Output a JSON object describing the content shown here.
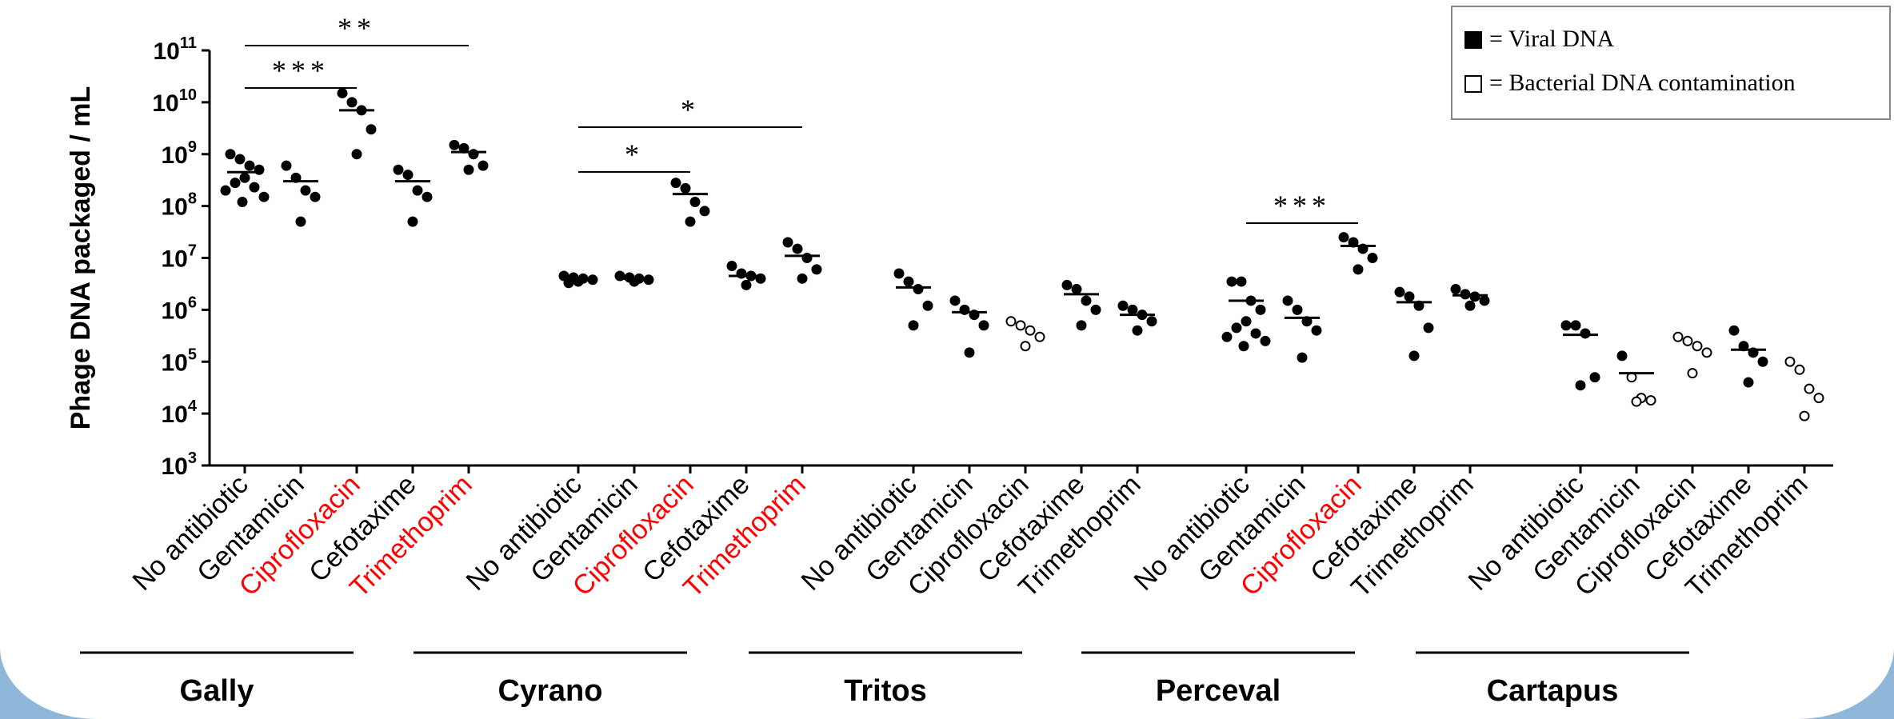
{
  "chart_data": {
    "type": "scatter",
    "y_axis": {
      "label": "Phage DNA packaged / mL",
      "scale": "log10",
      "min_exp": 3,
      "max_exp": 11,
      "ticks": [
        {
          "base": "10",
          "exp": "11"
        },
        {
          "base": "10",
          "exp": "10"
        },
        {
          "base": "10",
          "exp": "9"
        },
        {
          "base": "10",
          "exp": "8"
        },
        {
          "base": "10",
          "exp": "7"
        },
        {
          "base": "10",
          "exp": "6"
        },
        {
          "base": "10",
          "exp": "5"
        },
        {
          "base": "10",
          "exp": "4"
        },
        {
          "base": "10",
          "exp": "3"
        }
      ]
    },
    "legend": {
      "position": "top-right",
      "entries": [
        {
          "marker": "filled-square",
          "text": "= Viral DNA"
        },
        {
          "marker": "open-square",
          "text": "= Bacterial DNA contamination"
        }
      ]
    },
    "colors": {
      "highlight": "#ff0000",
      "default": "#000000"
    },
    "groups": [
      {
        "name": "Gally",
        "conditions": [
          {
            "label": "No antibiotic",
            "highlight": false,
            "marker": "filled",
            "mean": 450000000.0,
            "values": [
              1000000000.0,
              800000000.0,
              600000000.0,
              500000000.0,
              350000000.0,
              280000000.0,
              230000000.0,
              200000000.0,
              150000000.0,
              120000000.0
            ]
          },
          {
            "label": "Gentamicin",
            "highlight": false,
            "marker": "filled",
            "mean": 300000000.0,
            "values": [
              600000000.0,
              350000000.0,
              200000000.0,
              150000000.0,
              50000000.0
            ]
          },
          {
            "label": "Ciprofloxacin",
            "highlight": true,
            "marker": "filled",
            "mean": 7000000000.0,
            "values": [
              15000000000.0,
              10000000000.0,
              7000000000.0,
              3000000000.0,
              1000000000.0
            ]
          },
          {
            "label": "Cefotaxime",
            "highlight": false,
            "marker": "filled",
            "mean": 300000000.0,
            "values": [
              500000000.0,
              400000000.0,
              200000000.0,
              150000000.0,
              50000000.0
            ]
          },
          {
            "label": "Trimethoprim",
            "highlight": true,
            "marker": "filled",
            "mean": 1100000000.0,
            "values": [
              1500000000.0,
              1300000000.0,
              1000000000.0,
              600000000.0,
              500000000.0
            ]
          }
        ]
      },
      {
        "name": "Cyrano",
        "conditions": [
          {
            "label": "No antibiotic",
            "highlight": false,
            "marker": "filled",
            "mean": 4000000.0,
            "values": [
              4500000.0,
              4200000.0,
              4000000.0,
              3800000.0,
              3500000.0,
              3300000.0
            ]
          },
          {
            "label": "Gentamicin",
            "highlight": false,
            "marker": "filled",
            "mean": 4000000.0,
            "values": [
              4500000.0,
              4200000.0,
              4000000.0,
              3800000.0,
              3500000.0
            ]
          },
          {
            "label": "Ciprofloxacin",
            "highlight": true,
            "marker": "filled",
            "mean": 170000000.0,
            "values": [
              280000000.0,
              220000000.0,
              120000000.0,
              80000000.0,
              50000000.0
            ]
          },
          {
            "label": "Cefotaxime",
            "highlight": false,
            "marker": "filled",
            "mean": 4500000.0,
            "values": [
              7000000.0,
              5000000.0,
              4500000.0,
              4000000.0,
              3000000.0
            ]
          },
          {
            "label": "Trimethoprim",
            "highlight": true,
            "marker": "filled",
            "mean": 11000000.0,
            "values": [
              20000000.0,
              15000000.0,
              10000000.0,
              6000000.0,
              4000000.0
            ]
          }
        ]
      },
      {
        "name": "Tritos",
        "conditions": [
          {
            "label": "No antibiotic",
            "highlight": false,
            "marker": "filled",
            "mean": 2700000.0,
            "values": [
              5000000.0,
              3500000.0,
              2500000.0,
              1200000.0,
              500000.0
            ]
          },
          {
            "label": "Gentamicin",
            "highlight": false,
            "marker": "filled",
            "mean": 900000.0,
            "values": [
              1500000.0,
              1000000.0,
              800000.0,
              500000.0,
              150000.0
            ]
          },
          {
            "label": "Ciprofloxacin",
            "highlight": false,
            "marker": "open",
            "mean": null,
            "values": [
              600000.0,
              500000.0,
              400000.0,
              300000.0,
              200000.0
            ]
          },
          {
            "label": "Cefotaxime",
            "highlight": false,
            "marker": "filled",
            "mean": 2000000.0,
            "values": [
              3000000.0,
              2500000.0,
              1500000.0,
              1000000.0,
              500000.0
            ]
          },
          {
            "label": "Trimethoprim",
            "highlight": false,
            "marker": "filled",
            "mean": 800000.0,
            "values": [
              1200000.0,
              1000000.0,
              800000.0,
              600000.0,
              400000.0
            ]
          }
        ]
      },
      {
        "name": "Perceval",
        "conditions": [
          {
            "label": "No antibiotic",
            "highlight": false,
            "marker": "filled",
            "mean": 1500000.0,
            "values": [
              3500000.0,
              3500000.0,
              1500000.0,
              1000000.0,
              600000.0,
              450000.0,
              350000.0,
              300000.0,
              250000.0,
              200000.0
            ]
          },
          {
            "label": "Gentamicin",
            "highlight": false,
            "marker": "filled",
            "mean": 700000.0,
            "values": [
              1500000.0,
              1000000.0,
              600000.0,
              400000.0,
              120000.0
            ]
          },
          {
            "label": "Ciprofloxacin",
            "highlight": true,
            "marker": "filled",
            "mean": 17000000.0,
            "values": [
              25000000.0,
              20000000.0,
              15000000.0,
              10000000.0,
              6000000.0
            ]
          },
          {
            "label": "Cefotaxime",
            "highlight": false,
            "marker": "filled",
            "mean": 1400000.0,
            "values": [
              2200000.0,
              1800000.0,
              1200000.0,
              450000.0,
              130000.0
            ]
          },
          {
            "label": "Trimethoprim",
            "highlight": false,
            "marker": "filled",
            "mean": 1900000.0,
            "values": [
              2500000.0,
              2000000.0,
              1800000.0,
              1500000.0,
              1200000.0
            ]
          }
        ]
      },
      {
        "name": "Cartapus",
        "conditions": [
          {
            "label": "No antibiotic",
            "highlight": false,
            "marker": "filled",
            "mean": 330000.0,
            "values": [
              500000.0,
              500000.0,
              350000.0,
              50000.0,
              35000.0
            ]
          },
          {
            "label": "Gentamicin",
            "highlight": false,
            "marker": "mixed",
            "mean": 60000.0,
            "values": [
              130000.0,
              50000.0,
              20000.0,
              18000.0,
              17000.0
            ]
          },
          {
            "label": "Ciprofloxacin",
            "highlight": false,
            "marker": "open",
            "mean": null,
            "values": [
              300000.0,
              250000.0,
              200000.0,
              150000.0,
              60000.0
            ]
          },
          {
            "label": "Cefotaxime",
            "highlight": false,
            "marker": "filled",
            "mean": 170000.0,
            "values": [
              400000.0,
              200000.0,
              150000.0,
              100000.0,
              40000.0
            ]
          },
          {
            "label": "Trimethoprim",
            "highlight": false,
            "marker": "open",
            "mean": null,
            "values": [
              100000.0,
              70000.0,
              30000.0,
              20000.0,
              9000.0
            ]
          }
        ]
      }
    ],
    "significance": [
      {
        "stars": "***",
        "group": 0,
        "from": 0,
        "to": 2,
        "level": "low"
      },
      {
        "stars": "**",
        "group": 0,
        "from": 0,
        "to": 4,
        "level": "high"
      },
      {
        "stars": "*",
        "group": 1,
        "from": 0,
        "to": 2,
        "level": "low"
      },
      {
        "stars": "*",
        "group": 1,
        "from": 0,
        "to": 4,
        "level": "high"
      },
      {
        "stars": "***",
        "group": 3,
        "from": 0,
        "to": 2,
        "level": "low"
      }
    ]
  }
}
